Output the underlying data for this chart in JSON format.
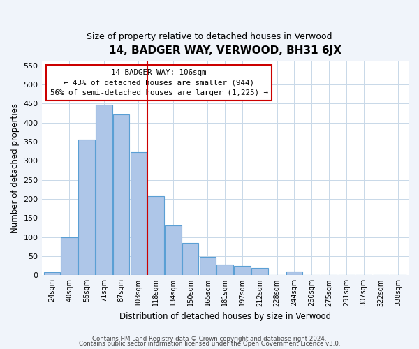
{
  "title": "14, BADGER WAY, VERWOOD, BH31 6JX",
  "subtitle": "Size of property relative to detached houses in Verwood",
  "xlabel": "Distribution of detached houses by size in Verwood",
  "ylabel": "Number of detached properties",
  "bar_labels": [
    "24sqm",
    "40sqm",
    "55sqm",
    "71sqm",
    "87sqm",
    "103sqm",
    "118sqm",
    "134sqm",
    "150sqm",
    "165sqm",
    "181sqm",
    "197sqm",
    "212sqm",
    "228sqm",
    "244sqm",
    "260sqm",
    "275sqm",
    "291sqm",
    "307sqm",
    "322sqm",
    "338sqm"
  ],
  "bar_heights": [
    7,
    100,
    355,
    447,
    422,
    322,
    207,
    130,
    85,
    48,
    28,
    25,
    19,
    0,
    10,
    0,
    0,
    0,
    0,
    0,
    0
  ],
  "bar_color": "#aec6e8",
  "bar_edge_color": "#5a9fd4",
  "vline_x": 5.5,
  "vline_color": "#cc0000",
  "annotation_title": "14 BADGER WAY: 106sqm",
  "annotation_line2": "← 43% of detached houses are smaller (944)",
  "annotation_line3": "56% of semi-detached houses are larger (1,225) →",
  "ylim": [
    0,
    560
  ],
  "yticks": [
    0,
    50,
    100,
    150,
    200,
    250,
    300,
    350,
    400,
    450,
    500,
    550
  ],
  "footer1": "Contains HM Land Registry data © Crown copyright and database right 2024.",
  "footer2": "Contains public sector information licensed under the Open Government Licence v3.0.",
  "bg_color": "#f0f4fa",
  "plot_bg_color": "#ffffff"
}
